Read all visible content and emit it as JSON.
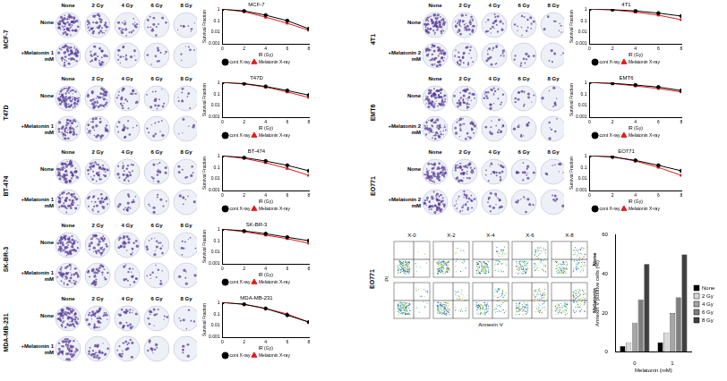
{
  "colony_panels": [
    {
      "cell_line": "MCF-7",
      "headers": [
        "None",
        "2 Gy",
        "4 Gy",
        "6 Gy",
        "8 Gy"
      ],
      "rows": [
        "None",
        "+Melatonin 1 mM"
      ]
    },
    {
      "cell_line": "T47D",
      "headers": [
        "None",
        "2 Gy",
        "4 Gy",
        "6 Gy",
        "8 Gy"
      ],
      "rows": [
        "None",
        "+Melatonin 1 mM"
      ]
    },
    {
      "cell_line": "BT-474",
      "headers": [
        "None",
        "2 Gy",
        "4 Gy",
        "6 Gy",
        "8 Gy"
      ],
      "rows": [
        "None",
        "+Melatonin 1 mM"
      ]
    },
    {
      "cell_line": "SK-BR-3",
      "headers": [
        "None",
        "2 Gy",
        "4 Gy",
        "6 Gy",
        "8 Gy"
      ],
      "rows": [
        "None",
        "+Melatonin 1 mM"
      ]
    },
    {
      "cell_line": "MDA-MB-231",
      "headers": [
        "None",
        "2 Gy",
        "4 Gy",
        "6 Gy",
        "8 Gy"
      ],
      "rows": [
        "None",
        "+Melatonin 1 mM"
      ]
    },
    {
      "cell_line": "4T1",
      "headers": [
        "None",
        "2 Gy",
        "4 Gy",
        "6 Gy",
        "8 Gy"
      ],
      "rows": [
        "None",
        "+Melatonin 2 mM"
      ]
    },
    {
      "cell_line": "EMT6",
      "headers": [
        "None",
        "2 Gy",
        "4 Gy",
        "6 Gy",
        "8 Gy"
      ],
      "rows": [
        "None",
        "+Melatonin 2 mM"
      ]
    },
    {
      "cell_line": "EO771",
      "headers": [
        "None",
        "2 Gy",
        "4 Gy",
        "6 Gy",
        "8 Gy"
      ],
      "rows": [
        "None",
        "+Melatonin 2 mM"
      ]
    }
  ],
  "chart_data": [
    {
      "type": "line",
      "title": "MCF-7",
      "x_label": "IR (Gy)",
      "y_label": "Survival Fraction",
      "x": [
        0,
        2,
        4,
        6,
        8
      ],
      "xlim": [
        0,
        8
      ],
      "xticks": [
        0,
        2,
        4,
        6,
        8
      ],
      "ylim": [
        0.001,
        1
      ],
      "yticks": [
        0.001,
        0.01,
        0.1,
        1
      ],
      "log": "y",
      "grid": false,
      "legend": "bottom",
      "series": [
        {
          "name": "cont X-ray",
          "color": "#000000",
          "marker": "circle",
          "values": [
            1,
            0.7,
            0.3,
            0.1,
            0.02
          ]
        },
        {
          "name": "Melatonin X-ray",
          "color": "#e31a1c",
          "marker": "triangle",
          "values": [
            1,
            0.6,
            0.2,
            0.06,
            0.015
          ]
        }
      ]
    },
    {
      "type": "line",
      "title": "T47D",
      "x_label": "IR (Gy)",
      "y_label": "Survival Fraction",
      "x": [
        0,
        2,
        4,
        6,
        8
      ],
      "xlim": [
        0,
        8
      ],
      "xticks": [
        0,
        2,
        4,
        6,
        8
      ],
      "ylim": [
        0.001,
        1
      ],
      "yticks": [
        0.001,
        0.01,
        0.1,
        1
      ],
      "log": "y",
      "grid": false,
      "legend": "bottom",
      "series": [
        {
          "name": "cont X-ray",
          "color": "#000000",
          "marker": "circle",
          "values": [
            1,
            0.8,
            0.45,
            0.2,
            0.08
          ]
        },
        {
          "name": "Melatonin X-ray",
          "color": "#e31a1c",
          "marker": "triangle",
          "values": [
            1,
            0.75,
            0.4,
            0.15,
            0.05
          ]
        }
      ]
    },
    {
      "type": "line",
      "title": "BT-474",
      "x_label": "IR (Gy)",
      "y_label": "Survival Fraction",
      "x": [
        0,
        2,
        4,
        6,
        8
      ],
      "xlim": [
        0,
        8
      ],
      "xticks": [
        0,
        2,
        4,
        6,
        8
      ],
      "ylim": [
        0.001,
        1
      ],
      "yticks": [
        0.001,
        0.01,
        0.1,
        1
      ],
      "log": "y",
      "grid": false,
      "legend": "bottom",
      "series": [
        {
          "name": "cont X-ray",
          "color": "#000000",
          "marker": "circle",
          "values": [
            1,
            0.7,
            0.35,
            0.15,
            0.05
          ]
        },
        {
          "name": "Melatonin X-ray",
          "color": "#e31a1c",
          "marker": "triangle",
          "values": [
            1,
            0.6,
            0.25,
            0.08,
            0.02
          ]
        }
      ]
    },
    {
      "type": "line",
      "title": "SK-BR-3",
      "x_label": "IR (Gy)",
      "y_label": "Survival Fraction",
      "x": [
        0,
        2,
        4,
        6,
        8
      ],
      "xlim": [
        0,
        8
      ],
      "xticks": [
        0,
        2,
        4,
        6,
        8
      ],
      "ylim": [
        0.001,
        1
      ],
      "yticks": [
        0.001,
        0.01,
        0.1,
        1
      ],
      "log": "y",
      "grid": false,
      "legend": "bottom",
      "series": [
        {
          "name": "cont X-ray",
          "color": "#000000",
          "marker": "circle",
          "values": [
            1,
            0.7,
            0.4,
            0.2,
            0.1
          ]
        },
        {
          "name": "Melatonin X-ray",
          "color": "#e31a1c",
          "marker": "triangle",
          "values": [
            1,
            0.6,
            0.3,
            0.15,
            0.06
          ]
        }
      ]
    },
    {
      "type": "line",
      "title": "MDA-MB-231",
      "x_label": "IR (Gy)",
      "y_label": "Survival Fraction",
      "x": [
        0,
        2,
        4,
        6,
        8
      ],
      "xlim": [
        0,
        8
      ],
      "xticks": [
        0,
        2,
        4,
        6,
        8
      ],
      "ylim": [
        0.001,
        1
      ],
      "yticks": [
        0.001,
        0.01,
        0.1,
        1
      ],
      "log": "y",
      "grid": false,
      "legend": "bottom",
      "series": [
        {
          "name": "cont X-ray",
          "color": "#000000",
          "marker": "circle",
          "values": [
            1,
            0.7,
            0.3,
            0.08,
            0.02
          ]
        },
        {
          "name": "Melatonin X-ray",
          "color": "#e31a1c",
          "marker": "triangle",
          "values": [
            1,
            0.7,
            0.3,
            0.1,
            0.02
          ]
        }
      ]
    },
    {
      "type": "line",
      "title": "4T1",
      "x_label": "IR (Gy)",
      "y_label": "Survival Fraction",
      "x": [
        0,
        2,
        4,
        6,
        8
      ],
      "xlim": [
        0,
        8
      ],
      "xticks": [
        0,
        2,
        4,
        6,
        8
      ],
      "ylim": [
        0.001,
        1
      ],
      "yticks": [
        0.001,
        0.01,
        0.1,
        1
      ],
      "log": "y",
      "grid": false,
      "legend": "bottom",
      "series": [
        {
          "name": "cont X-ray",
          "color": "#000000",
          "marker": "circle",
          "values": [
            1,
            0.9,
            0.7,
            0.45,
            0.25
          ]
        },
        {
          "name": "Melatonin X-ray",
          "color": "#e31a1c",
          "marker": "triangle",
          "values": [
            1,
            0.85,
            0.55,
            0.3,
            0.12
          ]
        }
      ]
    },
    {
      "type": "line",
      "title": "EMT6",
      "x_label": "IR (Gy)",
      "y_label": "Survival Fraction",
      "x": [
        0,
        2,
        4,
        6,
        8
      ],
      "xlim": [
        0,
        8
      ],
      "xticks": [
        0,
        2,
        4,
        6,
        8
      ],
      "ylim": [
        0.001,
        1
      ],
      "yticks": [
        0.001,
        0.01,
        0.1,
        1
      ],
      "log": "y",
      "grid": false,
      "legend": "bottom",
      "series": [
        {
          "name": "cont X-ray",
          "color": "#000000",
          "marker": "circle",
          "values": [
            1,
            0.85,
            0.6,
            0.4,
            0.2
          ]
        },
        {
          "name": "Melatonin X-ray",
          "color": "#e31a1c",
          "marker": "triangle",
          "values": [
            1,
            0.8,
            0.5,
            0.3,
            0.15
          ]
        }
      ]
    },
    {
      "type": "line",
      "title": "EO771",
      "x_label": "IR (Gy)",
      "y_label": "Survival Fraction",
      "x": [
        0,
        2,
        4,
        6,
        8
      ],
      "xlim": [
        0,
        8
      ],
      "xticks": [
        0,
        2,
        4,
        6,
        8
      ],
      "ylim": [
        0.001,
        1
      ],
      "yticks": [
        0.001,
        0.01,
        0.1,
        1
      ],
      "log": "y",
      "grid": false,
      "legend": "bottom",
      "series": [
        {
          "name": "cont X-ray",
          "color": "#000000",
          "marker": "circle",
          "values": [
            1,
            0.8,
            0.4,
            0.15,
            0.05
          ]
        },
        {
          "name": "Melatonin X-ray",
          "color": "#e31a1c",
          "marker": "triangle",
          "values": [
            1,
            0.85,
            0.35,
            0.1,
            0.02
          ]
        }
      ]
    },
    {
      "type": "bar",
      "x_label": "Melatonin (mM)",
      "y_label": "Annexin V positive cells (%)",
      "categories": [
        "0",
        "1"
      ],
      "ylim": [
        0,
        60
      ],
      "yticks": [
        0,
        20,
        40,
        60
      ],
      "grid": false,
      "legend": "right",
      "series": [
        {
          "name": "None",
          "color": "#000000",
          "values": [
            3,
            5
          ]
        },
        {
          "name": "2 Gy",
          "color": "#d9d9d9",
          "values": [
            5,
            10
          ]
        },
        {
          "name": "4 Gy",
          "color": "#a6a6a6",
          "values": [
            15,
            20
          ]
        },
        {
          "name": "6 Gy",
          "color": "#7f7f7f",
          "values": [
            27,
            28
          ]
        },
        {
          "name": "8 Gy",
          "color": "#404040",
          "values": [
            45,
            50
          ]
        }
      ]
    }
  ],
  "flow_panel": {
    "cell_line": "EO771",
    "columns": [
      "X-0",
      "X-2",
      "X-4",
      "X-6",
      "X-8"
    ],
    "rows": [
      "None",
      "Melatonin"
    ],
    "x_label": "Annexin V",
    "y_label": "PI"
  }
}
